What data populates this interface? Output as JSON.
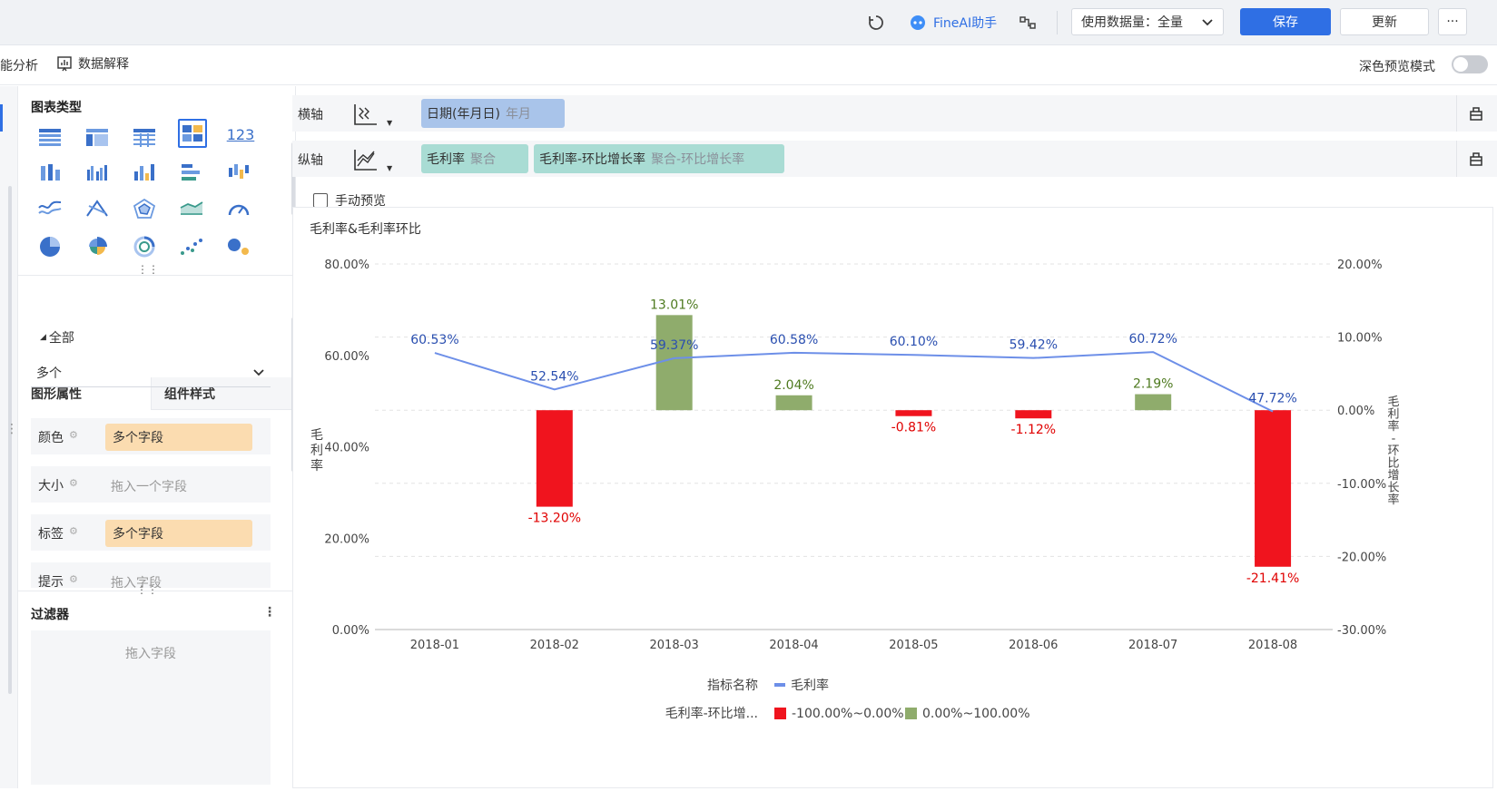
{
  "topbar": {
    "ai_label": "FineAI助手",
    "data_volume_label": "使用数据量：全量",
    "save_label": "保存",
    "update_label": "更新",
    "more_label": "···"
  },
  "secondbar": {
    "smart_analysis": "能分析",
    "data_explain": "数据解释",
    "dark_preview": "深色预览模式"
  },
  "left": {
    "chart_type_title": "图表类型",
    "number_icon_text": "123",
    "tab_properties": "图形属性",
    "tab_component_style": "组件样式",
    "all_label": "全部",
    "multi_select": "多个",
    "props": [
      {
        "label": "颜色",
        "value": "多个字段",
        "filled": true
      },
      {
        "label": "大小",
        "value": "拖入一个字段",
        "filled": false
      },
      {
        "label": "标签",
        "value": "多个字段",
        "filled": true
      },
      {
        "label": "提示",
        "value": "拖入字段",
        "filled": false
      }
    ],
    "filter_title": "过滤器",
    "filter_placeholder": "拖入字段"
  },
  "axes": {
    "x_label": "横轴",
    "y_label": "纵轴",
    "x_field": {
      "name": "日期(年月日)",
      "sub": "年月"
    },
    "y_fields": [
      {
        "name": "毛利率",
        "sub": "聚合"
      },
      {
        "name": "毛利率-环比增长率",
        "sub": "聚合-环比增长率"
      }
    ],
    "manual_preview": "手动预览"
  },
  "colors": {
    "primary": "#2f6fe4",
    "line": "#6d8fe8",
    "bar_negative": "#f0141e",
    "bar_positive": "#8fac6c",
    "x_pill": "#a9c4ea",
    "y_pill": "#a9dcd4"
  },
  "chart_data": {
    "type": "bar+line",
    "title": "毛利率&毛利率环比",
    "categories": [
      "2018-01",
      "2018-02",
      "2018-03",
      "2018-04",
      "2018-05",
      "2018-06",
      "2018-07",
      "2018-08"
    ],
    "line": {
      "name": "毛利率",
      "values": [
        60.53,
        52.54,
        59.37,
        60.58,
        60.1,
        59.42,
        60.72,
        47.72
      ],
      "labels": [
        "60.53%",
        "52.54%",
        "59.37%",
        "60.58%",
        "60.10%",
        "59.42%",
        "60.72%",
        "47.72%"
      ]
    },
    "bars": {
      "name": "毛利率-环比增长率",
      "values": [
        null,
        -13.2,
        13.01,
        2.04,
        -0.81,
        -1.12,
        2.19,
        -21.41
      ],
      "labels": [
        "",
        "-13.20%",
        "13.01%",
        "2.04%",
        "-0.81%",
        "-1.12%",
        "2.19%",
        "-21.41%"
      ]
    },
    "y_left": {
      "label": "毛利率",
      "range": [
        0,
        80
      ],
      "ticks": [
        "0.00%",
        "20.00%",
        "40.00%",
        "60.00%",
        "80.00%"
      ]
    },
    "y_right": {
      "label": "毛利率-环比增长率",
      "range": [
        -30,
        20
      ],
      "ticks": [
        "-30.00%",
        "-20.00%",
        "-10.00%",
        "0.00%",
        "10.00%",
        "20.00%"
      ]
    },
    "legend": {
      "row1_title": "指标名称",
      "row1_item": "毛利率",
      "row2_title": "毛利率-环比增...",
      "row2_items": [
        "-100.00%~0.00%",
        "0.00%~100.00%"
      ]
    }
  }
}
